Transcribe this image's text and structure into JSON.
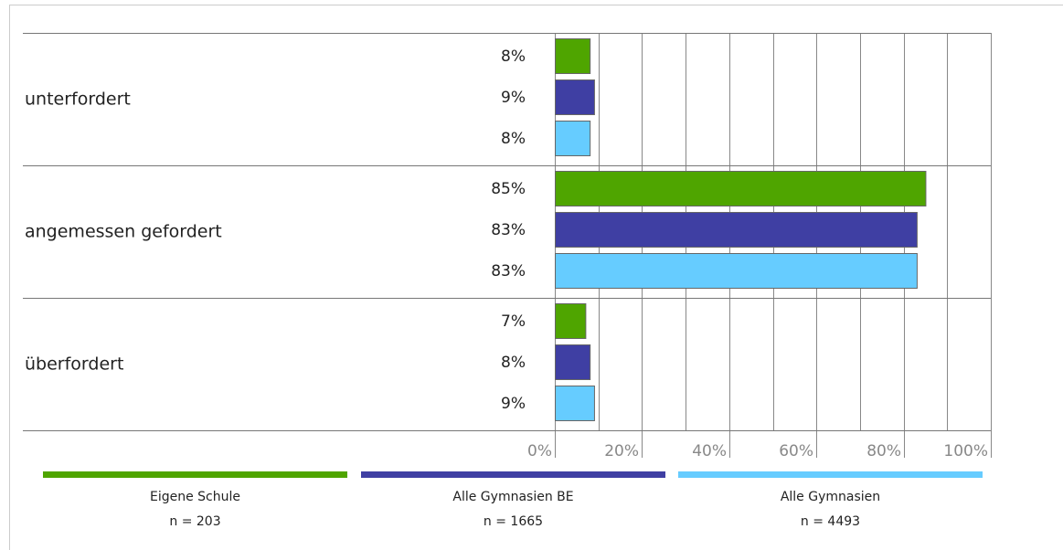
{
  "chart_data": {
    "type": "bar",
    "orientation": "horizontal",
    "categories": [
      "unterfordert",
      "angemessen gefordert",
      "überfordert"
    ],
    "series": [
      {
        "name": "Eigene Schule",
        "n_label": "n = 203",
        "color": "#4fa500",
        "values": [
          8,
          85,
          7
        ],
        "labels": [
          "8%",
          "85%",
          "7%"
        ]
      },
      {
        "name": "Alle Gymnasien BE",
        "n_label": "n = 1665",
        "color": "#3f3fa3",
        "values": [
          9,
          83,
          8
        ],
        "labels": [
          "9%",
          "83%",
          "8%"
        ]
      },
      {
        "name": "Alle Gymnasien",
        "n_label": "n = 4493",
        "color": "#66ccff",
        "values": [
          8,
          83,
          9
        ],
        "labels": [
          "8%",
          "83%",
          "9%"
        ]
      }
    ],
    "x_ticks": [
      "0%",
      "20%",
      "40%",
      "60%",
      "80%",
      "100%"
    ],
    "xlim": [
      0,
      100
    ],
    "grid": true,
    "legend_position": "bottom"
  }
}
